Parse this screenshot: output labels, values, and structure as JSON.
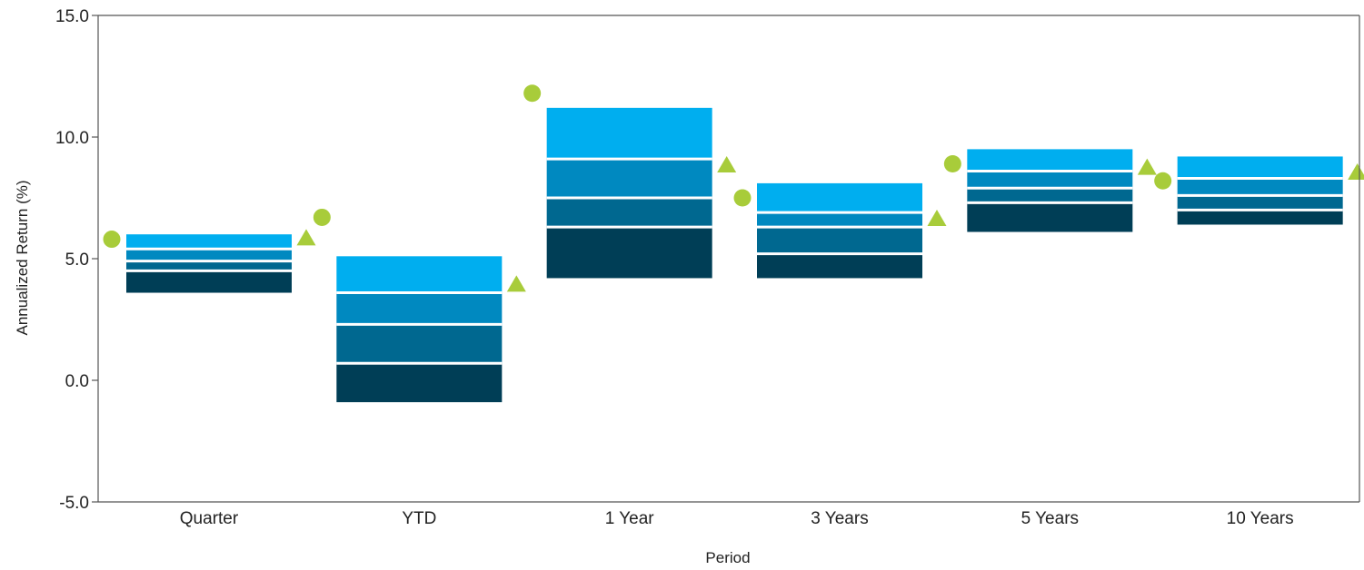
{
  "chart_data": {
    "type": "bar",
    "subtype": "floating-quartile-range",
    "xlabel": "Period",
    "ylabel": "Annualized Return (%)",
    "ylim": [
      -5.0,
      15.0
    ],
    "yticks": [
      -5.0,
      0.0,
      5.0,
      10.0,
      15.0
    ],
    "ytick_labels": [
      "-5.0",
      "0.0",
      "5.0",
      "10.0",
      "15.0"
    ],
    "grid": false,
    "legend": "none",
    "categories": [
      "Quarter",
      "YTD",
      "1 Year",
      "3 Years",
      "5 Years",
      "10 Years"
    ],
    "ranges": [
      {
        "category": "Quarter",
        "p5": 3.6,
        "p25": 4.5,
        "median": 4.9,
        "p75": 5.4,
        "p95": 6.0
      },
      {
        "category": "YTD",
        "p5": -0.9,
        "p25": 0.7,
        "median": 2.3,
        "p75": 3.6,
        "p95": 5.1
      },
      {
        "category": "1 Year",
        "p5": 4.2,
        "p25": 6.3,
        "median": 7.5,
        "p75": 9.1,
        "p95": 11.2
      },
      {
        "category": "3 Years",
        "p5": 4.2,
        "p25": 5.2,
        "median": 6.3,
        "p75": 6.9,
        "p95": 8.1
      },
      {
        "category": "5 Years",
        "p5": 6.1,
        "p25": 7.3,
        "median": 7.9,
        "p75": 8.6,
        "p95": 9.5
      },
      {
        "category": "10 Years",
        "p5": 6.4,
        "p25": 7.0,
        "median": 7.6,
        "p75": 8.3,
        "p95": 9.2
      }
    ],
    "series": [
      {
        "marker": "circle",
        "values": [
          5.8,
          6.7,
          11.8,
          7.5,
          8.9,
          8.2
        ]
      },
      {
        "marker": "triangle",
        "values": [
          5.8,
          3.9,
          8.8,
          6.6,
          8.7,
          8.5
        ]
      }
    ]
  },
  "colors": {
    "band_top": "#00aeef",
    "band_upper_mid": "#0089c0",
    "band_lower_mid": "#006890",
    "band_bottom": "#003e56",
    "separator": "#ffffff",
    "marker": "#a8cc3a",
    "axis": "#555555"
  }
}
